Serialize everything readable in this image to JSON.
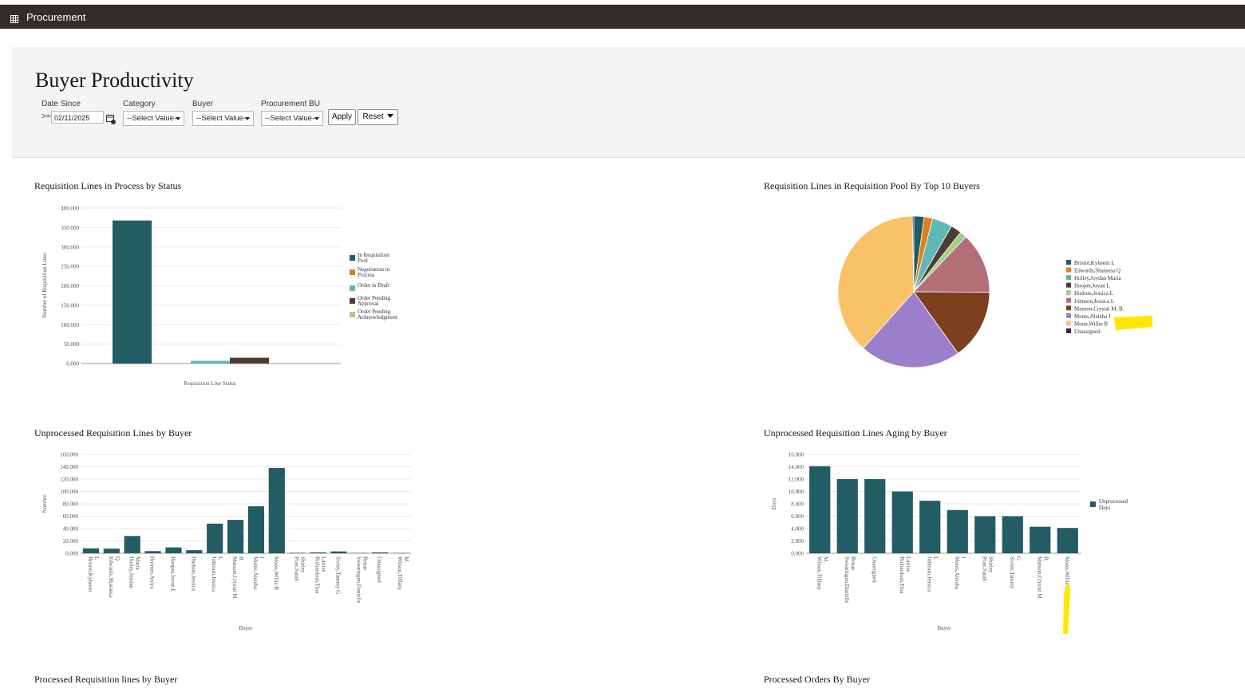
{
  "app": {
    "title": "Procurement"
  },
  "page": {
    "title": "Buyer Productivity"
  },
  "filters": {
    "date_since": {
      "label": "Date Since",
      "operator": ">=",
      "value": "02/11/2025"
    },
    "category": {
      "label": "Category",
      "value": "--Select Value--"
    },
    "buyer": {
      "label": "Buyer",
      "value": "--Select Value--"
    },
    "procurement_bu": {
      "label": "Procurement BU",
      "value": "--Select Value--"
    },
    "apply_label": "Apply",
    "reset_label": "Reset"
  },
  "icons": {
    "app_menu": "grid-icon",
    "calendar": "calendar-icon",
    "dropdown": "chevron-down-icon"
  },
  "colors": {
    "appbar": "#312d2a",
    "teal": "#235c65",
    "highlight": "#ffe600"
  },
  "chart_titles": {
    "status": "Requisition Lines in Process by Status",
    "pool": "Requisition Lines in Requisition Pool By Top 10 Buyers",
    "unprocessed": "Unprocessed Requisition Lines by Buyer",
    "aging": "Unprocessed Requisition Lines Aging by Buyer",
    "processed_lines": "Processed Requisition lines by Buyer",
    "processed_orders": "Processed Orders By Buyer"
  },
  "chart_data": [
    {
      "id": "status",
      "type": "bar",
      "title": "Requisition Lines in Process by Status",
      "xlabel": "Requisition Line Status",
      "ylabel": "Number of Requisition Lines",
      "ylim": [
        0,
        400000
      ],
      "yticks": [
        "0.000",
        "50.000",
        "100.000",
        "150.000",
        "200.000",
        "250.000",
        "300.000",
        "350.000",
        "400.000"
      ],
      "series": [
        {
          "name": "In Requisition Pool",
          "color": "#235c65",
          "values": [
            368000,
            null,
            null,
            null,
            null
          ]
        },
        {
          "name": "Negotiation in Process",
          "color": "#e27c1e",
          "values": [
            null,
            0,
            null,
            null,
            null
          ]
        },
        {
          "name": "Order in Draft",
          "color": "#60b8b4",
          "values": [
            null,
            null,
            7000,
            null,
            null
          ]
        },
        {
          "name": "Order Pending Approval",
          "color": "#4a3f37",
          "values": [
            null,
            null,
            null,
            15000,
            null
          ]
        },
        {
          "name": "Order Pending Acknowledgment",
          "color": "#a3cf85",
          "values": [
            null,
            null,
            null,
            null,
            0
          ]
        }
      ],
      "legend": [
        "In Requisition Pool",
        "Negotiation in Process",
        "Order in Draft",
        "Order Pending Approval",
        "Order Pending Acknowledgment"
      ],
      "grid": true,
      "legend_position": "right"
    },
    {
      "id": "pool",
      "type": "pie",
      "title": "Requisition Lines in Requisition Pool By Top 10 Buyers",
      "slices": [
        {
          "label": "Bristol,Kyheem L",
          "value": 2.2,
          "color": "#235c65"
        },
        {
          "label": "Edwards,Shatausa Q",
          "value": 1.8,
          "color": "#e27c1e"
        },
        {
          "label": "Holley,Joydan Maria",
          "value": 4.3,
          "color": "#60b8b4"
        },
        {
          "label": "Hooper,Jovan L",
          "value": 2.3,
          "color": "#4a3f37"
        },
        {
          "label": "Hudson,Jessica L",
          "value": 1.5,
          "color": "#a3cf85"
        },
        {
          "label": "Johnson,Jessica L",
          "value": 13.0,
          "color": "#b46e78"
        },
        {
          "label": "Manson,Crystal M. B.",
          "value": 15.0,
          "color": "#7d3f1e"
        },
        {
          "label": "Monts,Aleisha J",
          "value": 21.5,
          "color": "#9b7fcb"
        },
        {
          "label": "Moon,Willie B",
          "value": 38.1,
          "color": "#f9c268"
        },
        {
          "label": "Unassigned",
          "value": 0.3,
          "color": "#3b2351"
        }
      ],
      "legend_position": "right"
    },
    {
      "id": "unprocessed",
      "type": "bar",
      "title": "Unprocessed Requisition Lines by Buyer",
      "xlabel": "Buyer",
      "ylabel": "Number",
      "ylim": [
        0,
        160000
      ],
      "yticks": [
        "0.000",
        "20.000",
        "40.000",
        "60.000",
        "80.000",
        "100.000",
        "120.000",
        "140.000",
        "160.000"
      ],
      "categories": [
        "Bristol,Kyheem L",
        "Edwards,Shatausa Q",
        "Holley,Joydan Maria",
        "Holmes,Aniya",
        "Hooper,Jovan L",
        "Hudson,Jessica",
        "Johnson,Jessica L",
        "Manson,Crystal M. B.",
        "Monts,Aleisha J",
        "Moon,Willie B",
        "Pratt,Sarah Shirley",
        "Richardson,Tina Latrise",
        "Sivley,Tammy G",
        "Swearingen,Danielle Renae",
        "Unassigned",
        "Wilson,Tiffany M."
      ],
      "values": [
        8000,
        7500,
        28000,
        3500,
        9500,
        5000,
        48000,
        54000,
        76000,
        138000,
        800,
        1500,
        3000,
        600,
        1500,
        500
      ],
      "grid": true
    },
    {
      "id": "aging",
      "type": "bar",
      "title": "Unprocessed Requisition Lines Aging by Buyer",
      "xlabel": "Buyer",
      "ylabel": "Days",
      "ylim": [
        0,
        16000
      ],
      "yticks": [
        "0.000",
        "2.000",
        "4.000",
        "6.000",
        "8.000",
        "10.000",
        "12.000",
        "14.000",
        "16.000"
      ],
      "categories": [
        "Wilson,Tiffany M.",
        "Swearingen,Danielle Renae",
        "Unassigned",
        "Richardson,Tina Latrise",
        "Johnson,Jessica L",
        "Monts,Aleisha J",
        "Pratt,Sarah Shirley",
        "Sivley,Tammy G",
        "Manson,Crystal M. B.",
        "Moon,Willie B"
      ],
      "series": [
        {
          "name": "Unprocessed Days",
          "values": [
            14100,
            12000,
            12000,
            10000,
            8500,
            7000,
            6000,
            6000,
            4300,
            4100
          ]
        }
      ],
      "legend": [
        "Unprocessed Days"
      ],
      "grid": true,
      "legend_position": "right"
    }
  ]
}
